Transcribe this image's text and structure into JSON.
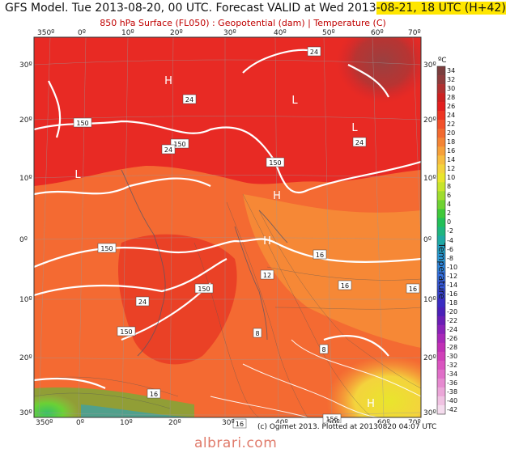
{
  "header": {
    "title_plain": "GFS Model. Tue 2013-08-20, 00 UTC. Forecast VALID at Wed 2013",
    "title_highlight": "-08-21, 18 UTC (H+42)",
    "subtitle": "850 hPa Surface (FL050) : Geopotential (dam) | Temperature (C)"
  },
  "axes": {
    "top_lon": [
      "350º",
      "0º",
      "10º",
      "20º",
      "30º",
      "40º",
      "50º",
      "60º",
      "70º"
    ],
    "bottom_lon": [
      "350º",
      "0º",
      "10º",
      "20º",
      "30º",
      "40º",
      "50º",
      "60º",
      "70º"
    ],
    "left_lat": [
      "30º",
      "20º",
      "10º",
      "0º",
      "10º",
      "20º",
      "30º"
    ],
    "right_lat": [
      "30º",
      "20º",
      "10º",
      "0º",
      "10º",
      "20º",
      "30º"
    ]
  },
  "contour_labels": {
    "geopotential": [
      "150",
      "150",
      "150",
      "150",
      "150",
      "150",
      "156"
    ],
    "temperature": [
      "24",
      "24",
      "24",
      "24",
      "24",
      "16",
      "16",
      "16",
      "12",
      "8",
      "8",
      "16",
      "16"
    ]
  },
  "pressure_centers": [
    "H",
    "L",
    "L",
    "L",
    "H",
    "H",
    "H"
  ],
  "colorbar": {
    "unit": "ºC",
    "title": "Temperature",
    "ticks": [
      "34",
      "32",
      "30",
      "28",
      "26",
      "24",
      "22",
      "20",
      "18",
      "16",
      "14",
      "12",
      "10",
      "8",
      "6",
      "4",
      "2",
      "0",
      "-2",
      "-4",
      "-6",
      "-8",
      "-10",
      "-12",
      "-14",
      "-16",
      "-18",
      "-20",
      "-22",
      "-24",
      "-26",
      "-28",
      "-30",
      "-32",
      "-34",
      "-36",
      "-38",
      "-40",
      "-42"
    ],
    "colors": [
      "#7b3d3d",
      "#8f3b3b",
      "#b03030",
      "#cc2020",
      "#e21f1f",
      "#ee3422",
      "#f2502a",
      "#f26a30",
      "#f48435",
      "#f6a03a",
      "#f7bc40",
      "#f4d33d",
      "#e9e52c",
      "#c7e52c",
      "#9fdc2e",
      "#6fd232",
      "#3fc83a",
      "#22bf58",
      "#1fb57f",
      "#1fa9a3",
      "#25a2c7",
      "#2b9ad9",
      "#3088e0",
      "#3470e0",
      "#3558d9",
      "#3640cc",
      "#3a2cc2",
      "#4a20b8",
      "#6a1eb5",
      "#8a22b8",
      "#a828b8",
      "#c030b5",
      "#d040b8",
      "#da55c0",
      "#e06fc8",
      "#e68ad0",
      "#eba6d8",
      "#f0c2e2",
      "#f5dcee"
    ]
  },
  "credit": "(c) Ogimet 2013. Plotted at 20130820 04:07 UTC",
  "watermark": "albrari.com"
}
